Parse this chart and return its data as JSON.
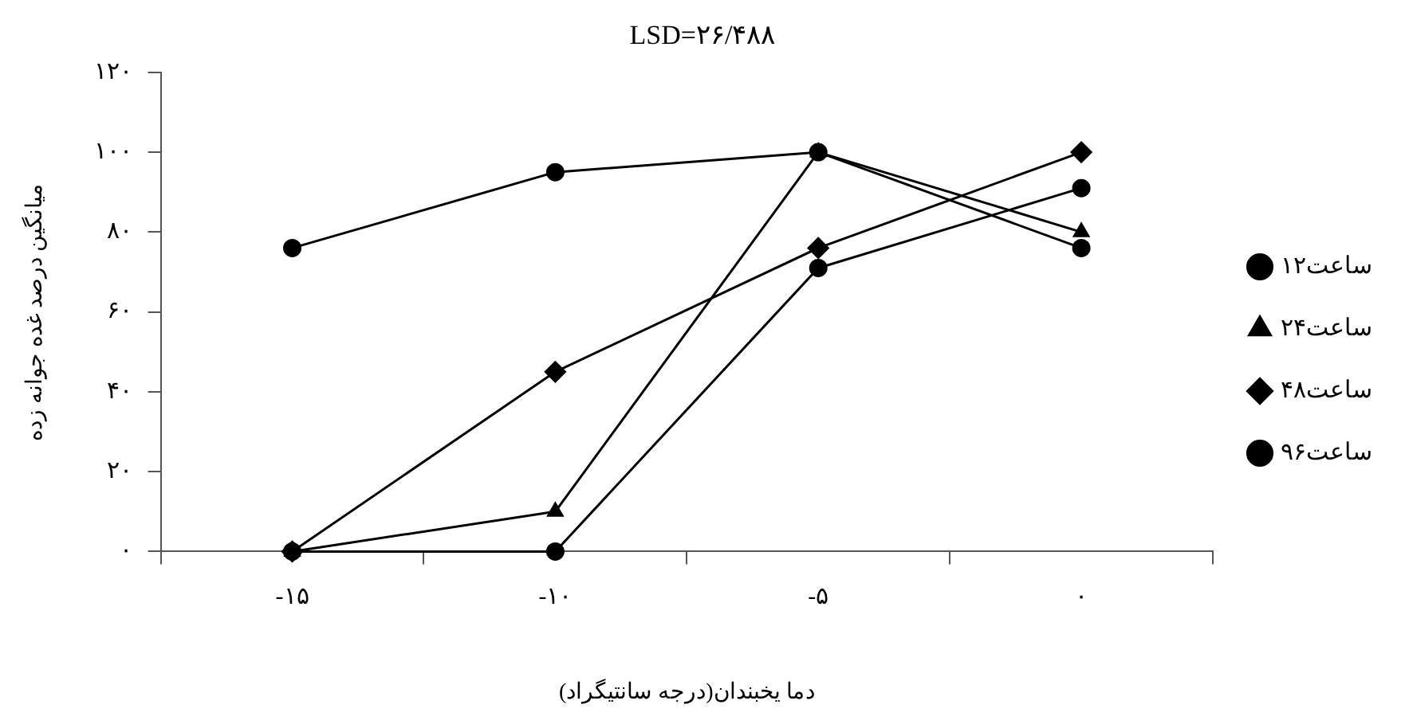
{
  "chart_data": {
    "type": "line",
    "title": "LSD=۲۶/۴۸۸",
    "xlabel": "دما یخبندان(درجه سانتیگراد)",
    "ylabel": "میانگین درصد غده جوانه زده",
    "categories": [
      "-۱۵",
      "-۱۰",
      "-۵",
      "۰"
    ],
    "series": [
      {
        "name": "۱۲ساعت",
        "color": "#000000",
        "marker": "circle",
        "values": [
          76,
          95,
          100,
          76
        ]
      },
      {
        "name": "۲۴ساعت",
        "color": "#000000",
        "marker": "triangle",
        "values": [
          0,
          10,
          100,
          80
        ]
      },
      {
        "name": "۴۸ساعت",
        "color": "#000000",
        "marker": "diamond",
        "values": [
          0,
          45,
          76,
          100
        ]
      },
      {
        "name": "۹۶ساعت",
        "color": "#000000",
        "marker": "circle",
        "values": [
          0,
          0,
          71,
          91
        ]
      }
    ],
    "ylim": [
      0,
      120
    ],
    "yticks": [
      {
        "value": 0,
        "label": "۰"
      },
      {
        "value": 20,
        "label": "۲۰"
      },
      {
        "value": 40,
        "label": "۴۰"
      },
      {
        "value": 60,
        "label": "۶۰"
      },
      {
        "value": 80,
        "label": "۸۰"
      },
      {
        "value": 100,
        "label": "۱۰۰"
      },
      {
        "value": 120,
        "label": "۱۲۰"
      }
    ],
    "grid": false,
    "legend": "right",
    "line_style": "solid"
  }
}
